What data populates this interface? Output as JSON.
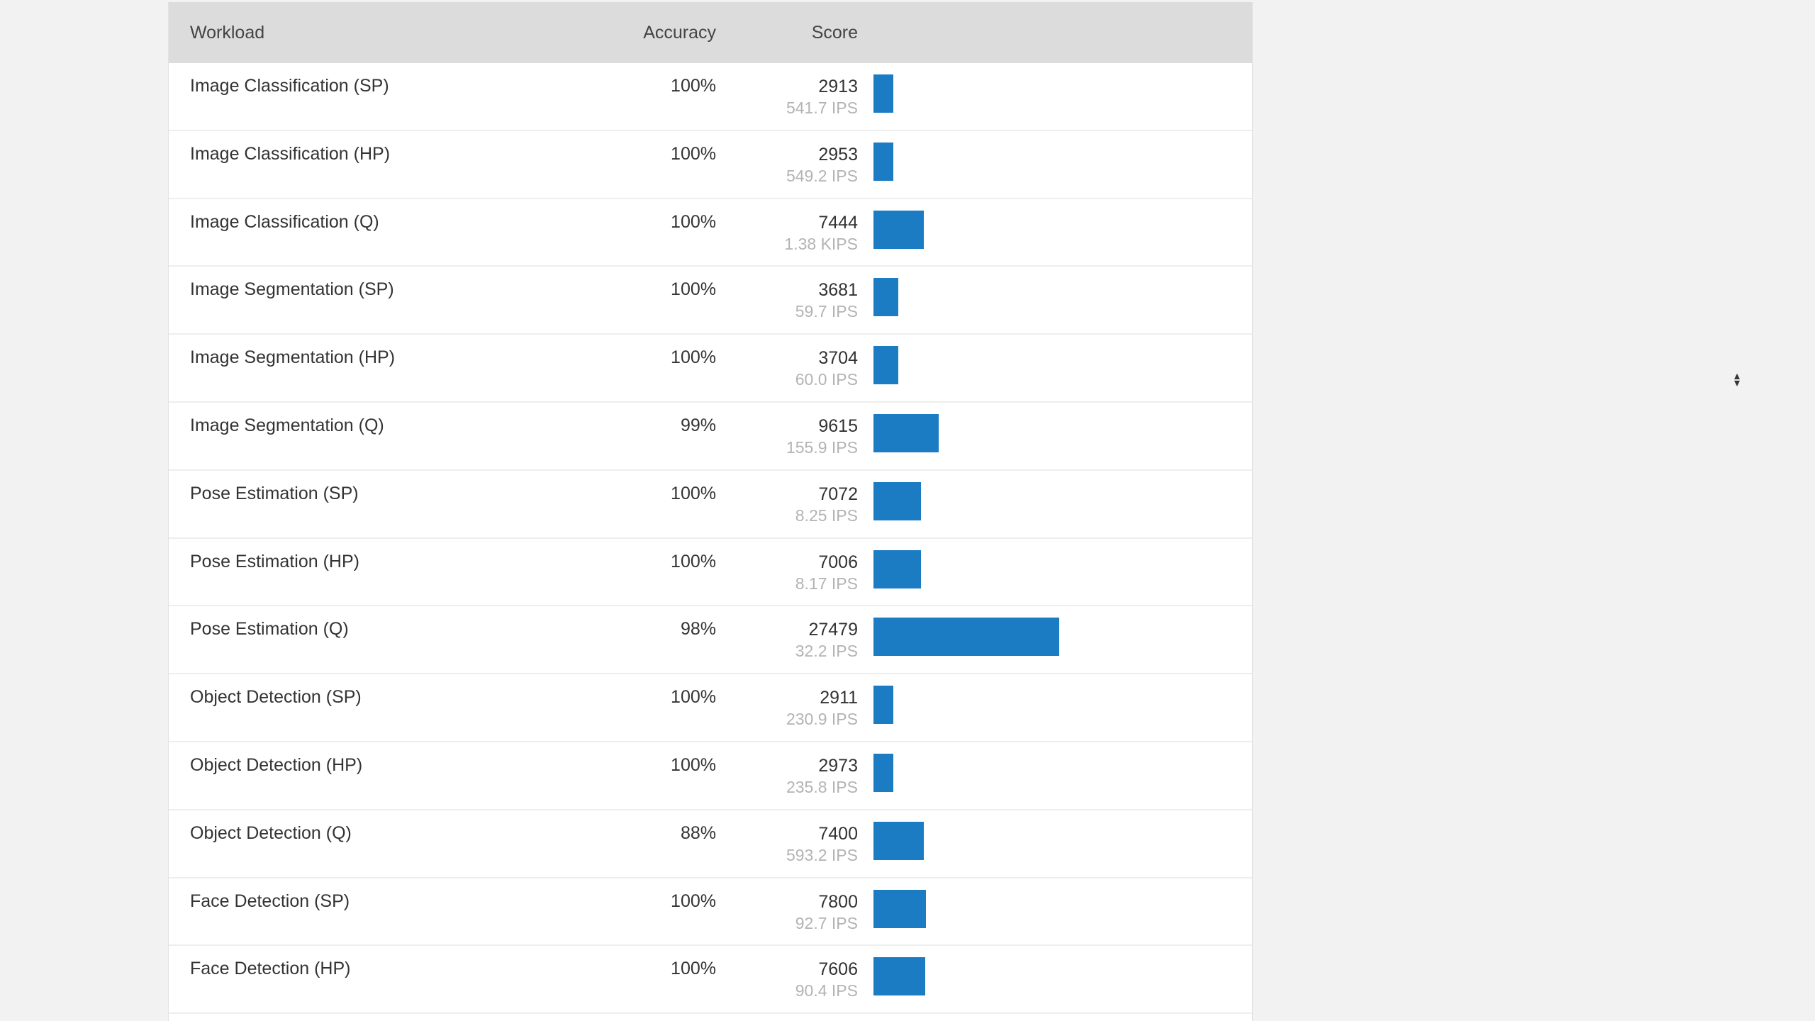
{
  "table": {
    "headers": {
      "workload": "Workload",
      "accuracy": "Accuracy",
      "score": "Score"
    },
    "bar_color": "#1b7cc4",
    "bar_scale_max": 27479,
    "rows": [
      {
        "workload": "Image Classification (SP)",
        "accuracy": "100%",
        "score": "2913",
        "rate": "541.7 IPS",
        "score_value": 2913
      },
      {
        "workload": "Image Classification (HP)",
        "accuracy": "100%",
        "score": "2953",
        "rate": "549.2 IPS",
        "score_value": 2953
      },
      {
        "workload": "Image Classification (Q)",
        "accuracy": "100%",
        "score": "7444",
        "rate": "1.38 KIPS",
        "score_value": 7444
      },
      {
        "workload": "Image Segmentation (SP)",
        "accuracy": "100%",
        "score": "3681",
        "rate": "59.7 IPS",
        "score_value": 3681
      },
      {
        "workload": "Image Segmentation (HP)",
        "accuracy": "100%",
        "score": "3704",
        "rate": "60.0 IPS",
        "score_value": 3704
      },
      {
        "workload": "Image Segmentation (Q)",
        "accuracy": "99%",
        "score": "9615",
        "rate": "155.9 IPS",
        "score_value": 9615
      },
      {
        "workload": "Pose Estimation (SP)",
        "accuracy": "100%",
        "score": "7072",
        "rate": "8.25 IPS",
        "score_value": 7072
      },
      {
        "workload": "Pose Estimation (HP)",
        "accuracy": "100%",
        "score": "7006",
        "rate": "8.17 IPS",
        "score_value": 7006
      },
      {
        "workload": "Pose Estimation (Q)",
        "accuracy": "98%",
        "score": "27479",
        "rate": "32.2 IPS",
        "score_value": 27479
      },
      {
        "workload": "Object Detection (SP)",
        "accuracy": "100%",
        "score": "2911",
        "rate": "230.9 IPS",
        "score_value": 2911
      },
      {
        "workload": "Object Detection (HP)",
        "accuracy": "100%",
        "score": "2973",
        "rate": "235.8 IPS",
        "score_value": 2973
      },
      {
        "workload": "Object Detection (Q)",
        "accuracy": "88%",
        "score": "7400",
        "rate": "593.2 IPS",
        "score_value": 7400
      },
      {
        "workload": "Face Detection (SP)",
        "accuracy": "100%",
        "score": "7800",
        "rate": "92.7 IPS",
        "score_value": 7800
      },
      {
        "workload": "Face Detection (HP)",
        "accuracy": "100%",
        "score": "7606",
        "rate": "90.4 IPS",
        "score_value": 7606
      }
    ]
  },
  "scroll_indicator": {
    "icon": "resize-arrows-icon"
  }
}
